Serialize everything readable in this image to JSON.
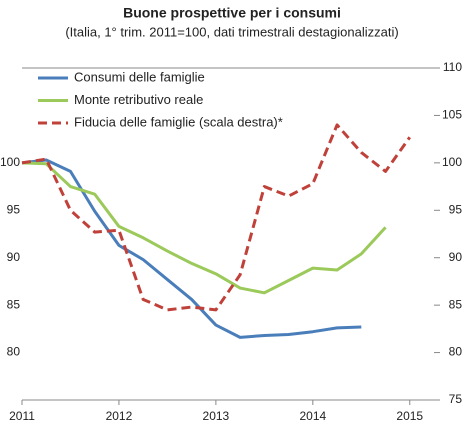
{
  "chart_data": {
    "type": "line",
    "title": "Buone prospettive per i consumi",
    "subtitle": "(Italia, 1° trim. 2011=100, dati trimestrali destagionalizzati)",
    "x": [
      2011,
      2011.25,
      2011.5,
      2011.75,
      2012,
      2012.25,
      2012.5,
      2012.75,
      2013,
      2013.25,
      2013.5,
      2013.75,
      2014,
      2014.25,
      2014.5,
      2014.75,
      2015
    ],
    "xlim": [
      2011,
      2015.25
    ],
    "xticks": [
      2011,
      2012,
      2013,
      2014,
      2015
    ],
    "ylim": [
      75,
      110
    ],
    "yticks": [
      80,
      85,
      90,
      95,
      100
    ],
    "y2lim": [
      75,
      110
    ],
    "y2ticks": [
      75,
      80,
      85,
      90,
      95,
      100,
      105,
      110
    ],
    "legend": "upper left",
    "series": [
      {
        "name": "Consumi delle famiglie",
        "color": "#4a7ebb",
        "dash": false,
        "values": [
          100,
          100.3,
          99.1,
          94.9,
          91.3,
          89.8,
          87.7,
          85.6,
          82.9,
          81.6,
          81.8,
          81.9,
          82.2,
          82.6,
          82.7,
          null,
          null
        ]
      },
      {
        "name": "Monte retributivo reale",
        "color": "#9bc95a",
        "dash": false,
        "values": [
          100,
          99.9,
          97.5,
          96.7,
          93.3,
          92.1,
          90.7,
          89.4,
          88.3,
          86.8,
          86.3,
          87.6,
          88.9,
          88.7,
          90.4,
          93.2,
          null
        ]
      },
      {
        "name": "Fiducia delle famiglie (scala destra)*",
        "color": "#c0413a",
        "dash": true,
        "axis": "y2",
        "values": [
          100,
          100.4,
          95,
          92.7,
          92.9,
          85.6,
          84.5,
          84.8,
          84.5,
          88.2,
          97.5,
          96.5,
          97.8,
          104,
          101.1,
          99.1,
          102.7
        ]
      }
    ]
  }
}
